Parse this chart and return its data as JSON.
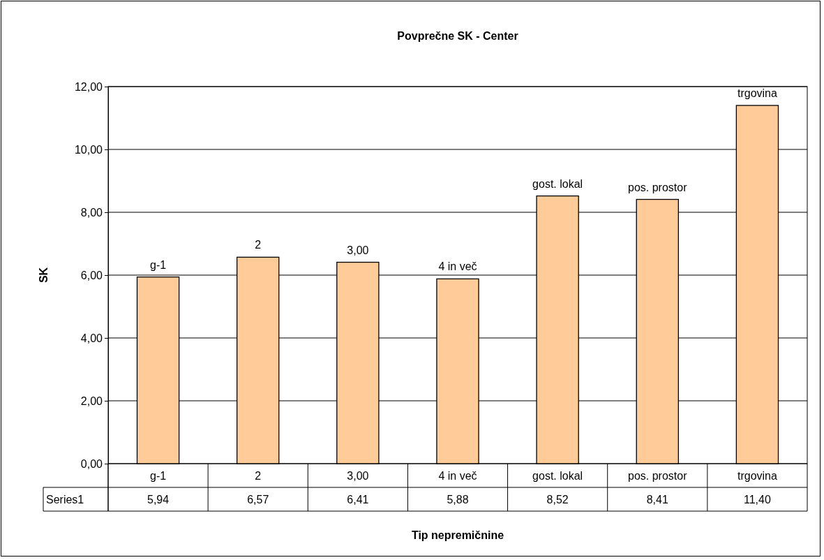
{
  "chart_data": {
    "type": "bar",
    "title": "Povprečne SK - Center",
    "xlabel": "Tip nepremičnine",
    "ylabel": "SK",
    "categories": [
      "g-1",
      "2",
      "3,00",
      "4 in več",
      "gost. lokal",
      "pos. prostor",
      "trgovina"
    ],
    "series": [
      {
        "name": "Series1",
        "color": "#ffcc99",
        "values": [
          5.94,
          6.57,
          6.41,
          5.88,
          8.52,
          8.41,
          11.4
        ],
        "value_labels": [
          "5,94",
          "6,57",
          "6,41",
          "5,88",
          "8,52",
          "8,41",
          "11,40"
        ]
      }
    ],
    "ylim": [
      0,
      12
    ],
    "yticks": [
      {
        "value": 0,
        "label": "0,00"
      },
      {
        "value": 2,
        "label": "2,00"
      },
      {
        "value": 4,
        "label": "4,00"
      },
      {
        "value": 6,
        "label": "6,00"
      },
      {
        "value": 8,
        "label": "8,00"
      },
      {
        "value": 10,
        "label": "10,00"
      },
      {
        "value": 12,
        "label": "12,00"
      }
    ],
    "grid": "y",
    "legend": "bottom"
  }
}
